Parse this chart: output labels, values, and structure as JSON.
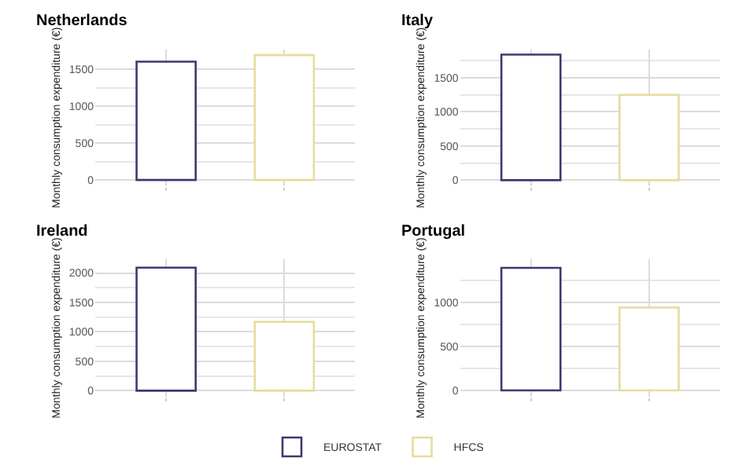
{
  "chart_data": [
    {
      "type": "bar",
      "title": "Netherlands",
      "ylabel": "Monthly consumption expenditure (€)",
      "categories": [
        null,
        null
      ],
      "series": [
        {
          "name": "EUROSTAT",
          "color": "#3b3a6e",
          "values": [
            1600,
            null
          ]
        },
        {
          "name": "HFCS",
          "color": "#e6dc9c",
          "values": [
            null,
            1690
          ]
        }
      ],
      "ylim": [
        -85,
        1770
      ],
      "yticks": [
        0,
        500,
        1000,
        1500
      ],
      "grid": true,
      "legend": "bottom",
      "tick_labels": "y"
    },
    {
      "type": "bar",
      "title": "Italy",
      "ylabel": "Monthly consumption expenditure (€)",
      "categories": [
        null,
        null
      ],
      "series": [
        {
          "name": "EUROSTAT",
          "color": "#3b3a6e",
          "values": [
            1840,
            null
          ]
        },
        {
          "name": "HFCS",
          "color": "#e6dc9c",
          "values": [
            null,
            1250
          ]
        }
      ],
      "ylim": [
        -90,
        1920
      ],
      "yticks": [
        0,
        500,
        1000,
        1500
      ],
      "grid": true,
      "legend": "bottom",
      "tick_labels": "y"
    },
    {
      "type": "bar",
      "title": "Ireland",
      "ylabel": "Monthly consumption expenditure (€)",
      "categories": [
        null,
        null
      ],
      "series": [
        {
          "name": "EUROSTAT",
          "color": "#3b3a6e",
          "values": [
            2090,
            null
          ]
        },
        {
          "name": "HFCS",
          "color": "#e6dc9c",
          "values": [
            null,
            1170
          ]
        }
      ],
      "ylim": [
        -100,
        2230
      ],
      "yticks": [
        0,
        500,
        1000,
        1500,
        2000
      ],
      "grid": true,
      "legend": "bottom",
      "tick_labels": "y"
    },
    {
      "type": "bar",
      "title": "Portugal",
      "ylabel": "Monthly consumption expenditure (€)",
      "categories": [
        null,
        null
      ],
      "series": [
        {
          "name": "EUROSTAT",
          "color": "#3b3a6e",
          "values": [
            1390,
            null
          ]
        },
        {
          "name": "HFCS",
          "color": "#e6dc9c",
          "values": [
            null,
            940
          ]
        }
      ],
      "ylim": [
        -70,
        1485
      ],
      "yticks": [
        0,
        500,
        1000
      ],
      "grid": true,
      "legend": "bottom",
      "tick_labels": "y"
    }
  ]
}
